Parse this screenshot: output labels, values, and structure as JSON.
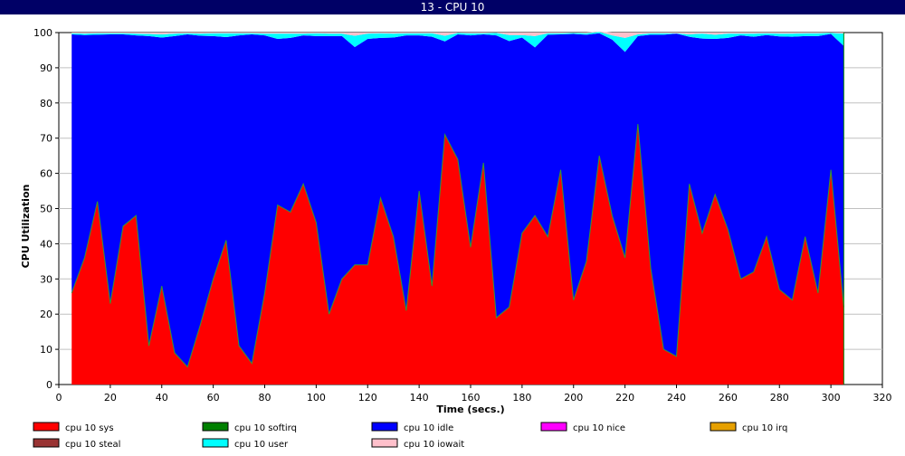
{
  "window": {
    "title": "13 - CPU 10"
  },
  "chart_data": {
    "type": "area",
    "stacked": true,
    "xlabel": "Time (secs.)",
    "ylabel": "CPU Utilization",
    "xlim": [
      0,
      320
    ],
    "ylim": [
      0,
      100
    ],
    "xticks": [
      0,
      20,
      40,
      60,
      80,
      100,
      120,
      140,
      160,
      180,
      200,
      220,
      240,
      260,
      280,
      300,
      320
    ],
    "yticks": [
      0,
      10,
      20,
      30,
      40,
      50,
      60,
      70,
      80,
      90,
      100
    ],
    "grid": "horizontal",
    "legend_position": "bottom",
    "x": [
      5,
      10,
      15,
      20,
      25,
      30,
      35,
      40,
      45,
      50,
      55,
      60,
      65,
      70,
      75,
      80,
      85,
      90,
      95,
      100,
      105,
      110,
      115,
      120,
      125,
      130,
      135,
      140,
      145,
      150,
      155,
      160,
      165,
      170,
      175,
      180,
      185,
      190,
      195,
      200,
      205,
      210,
      215,
      220,
      225,
      230,
      235,
      240,
      245,
      250,
      255,
      260,
      265,
      270,
      275,
      280,
      285,
      290,
      295,
      300,
      305
    ],
    "series": [
      {
        "name": "cpu 10 sys",
        "color": "#ff0000",
        "values": [
          26,
          36,
          52,
          23,
          45,
          48,
          11,
          28,
          9,
          5,
          17,
          30,
          41,
          11,
          6,
          26,
          51,
          49,
          57,
          46,
          20,
          30,
          34,
          34,
          53,
          42,
          21,
          55,
          28,
          71,
          64,
          39,
          63,
          19,
          22,
          43,
          48,
          42,
          61,
          24,
          35,
          65,
          48,
          36,
          74,
          33,
          10,
          8,
          57,
          43,
          54,
          44,
          30,
          32,
          42,
          27,
          24,
          42,
          26,
          61,
          22
        ]
      },
      {
        "name": "cpu 10 softirq",
        "color": "#008000",
        "values": [
          0,
          0,
          0,
          0,
          0,
          0,
          0,
          0,
          0,
          0,
          0,
          0,
          0,
          0,
          0,
          0,
          0,
          0,
          0,
          0,
          0,
          0,
          0,
          0,
          0,
          0,
          0,
          0,
          0,
          0,
          0,
          0,
          0,
          0,
          0,
          0,
          0,
          0,
          0,
          0,
          0,
          0,
          0,
          0,
          0,
          0,
          0,
          0,
          0,
          0,
          0,
          0,
          0,
          0,
          0,
          0,
          0,
          0,
          0,
          0,
          0
        ]
      },
      {
        "name": "cpu 10 idle",
        "color": "#0000ff",
        "values": [
          73.5,
          63.3,
          47.4,
          76.5,
          54.5,
          51.2,
          88,
          70.6,
          90,
          94.5,
          82.1,
          69,
          57.7,
          88.2,
          93.5,
          73.2,
          47.2,
          49.5,
          42.2,
          53,
          79,
          69,
          61.9,
          64.2,
          45.5,
          56.6,
          78.2,
          44.2,
          70.8,
          26.5,
          35.5,
          60.2,
          36.5,
          80.2,
          75.6,
          55.6,
          47.8,
          57.4,
          38.5,
          75.6,
          64.4,
          34.8,
          50,
          58.5,
          25,
          66.4,
          89.4,
          91.7,
          41.8,
          55.3,
          44.2,
          54.5,
          69.2,
          66.8,
          57.3,
          71.9,
          74.8,
          57,
          73,
          38.6,
          74.2
        ]
      },
      {
        "name": "cpu 10 nice",
        "color": "#ff00ff",
        "values": [
          0,
          0,
          0,
          0,
          0,
          0,
          0,
          0,
          0,
          0,
          0,
          0,
          0,
          0,
          0,
          0,
          0,
          0,
          0,
          0,
          0,
          0,
          0,
          0,
          0,
          0,
          0,
          0,
          0,
          0,
          0,
          0,
          0,
          0,
          0,
          0,
          0,
          0,
          0,
          0,
          0,
          0,
          0,
          0,
          0,
          0,
          0,
          0,
          0,
          0,
          0,
          0,
          0,
          0,
          0,
          0,
          0,
          0,
          0,
          0,
          0
        ]
      },
      {
        "name": "cpu 10 irq",
        "color": "#e6a000",
        "values": [
          0,
          0,
          0,
          0,
          0,
          0,
          0,
          0,
          0,
          0,
          0,
          0,
          0,
          0,
          0,
          0,
          0,
          0,
          0,
          0,
          0,
          0,
          0,
          0,
          0,
          0,
          0,
          0,
          0,
          0,
          0,
          0,
          0,
          0,
          0,
          0,
          0,
          0,
          0,
          0,
          0,
          0,
          0,
          0,
          0,
          0,
          0,
          0,
          0,
          0,
          0,
          0,
          0,
          0,
          0,
          0,
          0,
          0,
          0,
          0,
          0
        ]
      },
      {
        "name": "cpu 10 steal",
        "color": "#993333",
        "values": [
          0,
          0,
          0,
          0,
          0,
          0,
          0,
          0,
          0,
          0,
          0,
          0,
          0,
          0,
          0,
          0,
          0,
          0,
          0,
          0,
          0,
          0,
          0,
          0,
          0,
          0,
          0,
          0,
          0,
          0,
          0,
          0,
          0,
          0,
          0,
          0,
          0,
          0,
          0,
          0,
          0,
          0,
          0,
          0,
          0,
          0,
          0,
          0,
          0,
          0,
          0,
          0,
          0,
          0,
          0,
          0,
          0,
          0,
          0,
          0,
          0
        ]
      },
      {
        "name": "cpu 10 user",
        "color": "#00ffff",
        "values": [
          0.3,
          0.4,
          0.4,
          0.3,
          0.3,
          0.5,
          0.6,
          0.9,
          0.7,
          0.3,
          0.6,
          0.8,
          1.1,
          0.6,
          0.3,
          0.5,
          1.5,
          1.2,
          0.5,
          0.8,
          0.7,
          0.7,
          3.2,
          1.5,
          1.3,
          1.1,
          0.6,
          0.6,
          1,
          1.6,
          0.4,
          0.6,
          0.3,
          0.7,
          1.7,
          0.7,
          3.2,
          0.4,
          0.3,
          0.3,
          0.4,
          0.4,
          1.2,
          4,
          0.5,
          0.4,
          0.4,
          0.1,
          0.7,
          1.4,
          1.2,
          1.2,
          0.5,
          0.9,
          0.5,
          0.8,
          0.9,
          0.8,
          0.8,
          0.3,
          3.5
        ]
      },
      {
        "name": "cpu 10 iowait",
        "color": "#ffc0cb",
        "values": [
          0.2,
          0.3,
          0.2,
          0.2,
          0.2,
          0.3,
          0.4,
          0.5,
          0.3,
          0.2,
          0.3,
          0.2,
          0.2,
          0.2,
          0.2,
          0.3,
          0.3,
          0.3,
          0.3,
          0.2,
          0.3,
          0.3,
          0.9,
          0.3,
          0.2,
          0.3,
          0.2,
          0.2,
          0.2,
          0.9,
          0.1,
          0.2,
          0.2,
          0.1,
          0.7,
          0.7,
          1,
          0.2,
          0.2,
          0.1,
          0.2,
          0.1,
          0.8,
          1.5,
          0.5,
          0.2,
          0.2,
          0.2,
          0.5,
          0.3,
          0.6,
          0.3,
          0.3,
          0.3,
          0.2,
          0.3,
          0.3,
          0.2,
          0.2,
          0.1,
          0.3
        ]
      }
    ]
  }
}
